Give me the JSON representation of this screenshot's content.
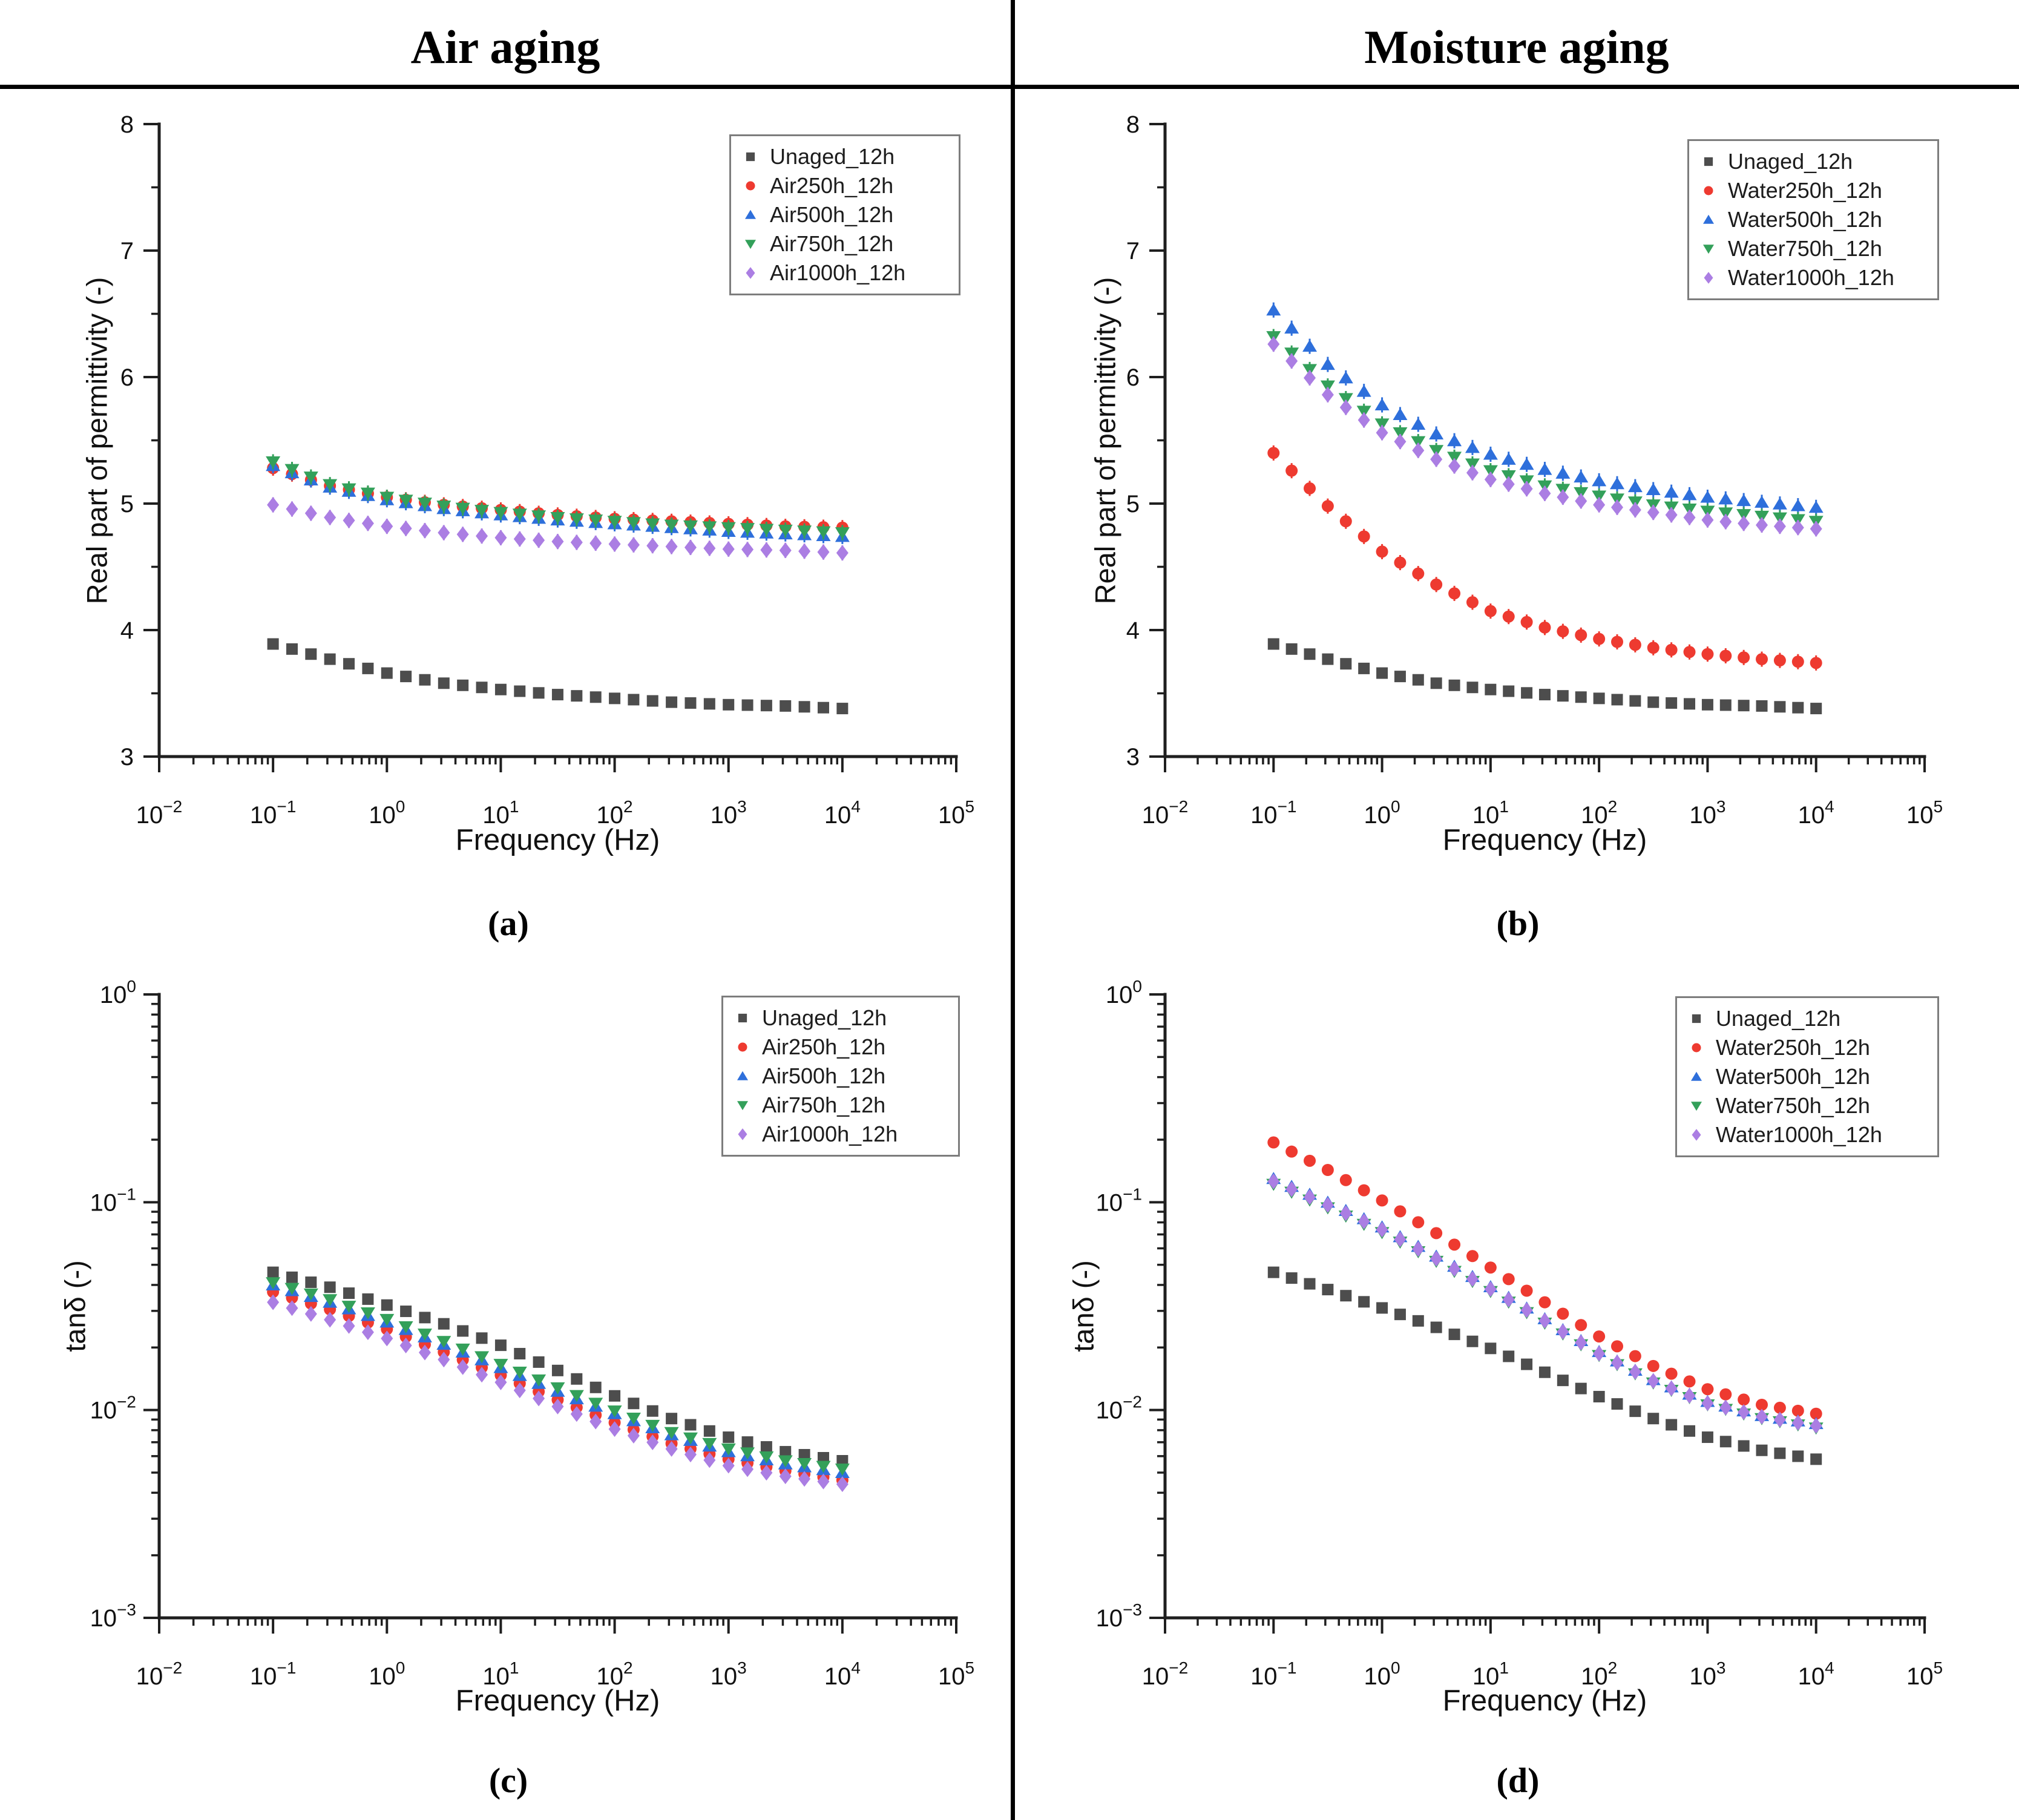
{
  "header": {
    "columns": [
      {
        "title": "Air aging"
      },
      {
        "title": "Moisture aging"
      }
    ]
  },
  "chart_data": [
    {
      "id": "a",
      "type": "scatter",
      "caption": "(a)",
      "xlabel": "Frequency (Hz)",
      "ylabel": "Real part of permittivity  (-)",
      "x_scale": "log",
      "x_range_exp": [
        -2,
        5
      ],
      "y_scale": "linear",
      "y_range": [
        3,
        8
      ],
      "y_major_ticks": [
        3,
        4,
        5,
        6,
        7,
        8
      ],
      "legend_position": "top-right",
      "grid": false,
      "error_bar_halfwidth": 0.06,
      "x_values": [
        0.1,
        0.316,
        1,
        3.16,
        10,
        31.6,
        100,
        316,
        1000,
        3160,
        10000
      ],
      "series": [
        {
          "name": "Unaged_12h",
          "marker": "square",
          "color": "#4d4d4d",
          "error_bars": false,
          "values": [
            3.89,
            3.77,
            3.66,
            3.58,
            3.53,
            3.49,
            3.46,
            3.43,
            3.41,
            3.4,
            3.38
          ]
        },
        {
          "name": "Air250h_12h",
          "marker": "circle",
          "color": "#ee3a30",
          "error_bars": true,
          "values": [
            5.28,
            5.14,
            5.05,
            4.99,
            4.95,
            4.91,
            4.88,
            4.86,
            4.84,
            4.82,
            4.81
          ]
        },
        {
          "name": "Air500h_12h",
          "marker": "triangle-up",
          "color": "#2e6fdb",
          "error_bars": true,
          "values": [
            5.3,
            5.13,
            5.03,
            4.96,
            4.91,
            4.87,
            4.84,
            4.81,
            4.78,
            4.76,
            4.74
          ]
        },
        {
          "name": "Air750h_12h",
          "marker": "triangle-down",
          "color": "#33a05a",
          "error_bars": true,
          "values": [
            5.33,
            5.15,
            5.05,
            4.98,
            4.93,
            4.89,
            4.86,
            4.83,
            4.81,
            4.79,
            4.77
          ]
        },
        {
          "name": "Air1000h_12h",
          "marker": "diamond",
          "color": "#ab7ee3",
          "error_bars": true,
          "values": [
            4.99,
            4.89,
            4.82,
            4.77,
            4.73,
            4.7,
            4.68,
            4.66,
            4.64,
            4.63,
            4.61
          ]
        }
      ]
    },
    {
      "id": "b",
      "type": "scatter",
      "caption": "(b)",
      "xlabel": "Frequency (Hz)",
      "ylabel": "Real part of permittivity  (-)",
      "x_scale": "log",
      "x_range_exp": [
        -2,
        5
      ],
      "y_scale": "linear",
      "y_range": [
        3,
        8
      ],
      "y_major_ticks": [
        3,
        4,
        5,
        6,
        7,
        8
      ],
      "legend_position": "top-right",
      "grid": false,
      "error_bar_halfwidth": 0.06,
      "x_values": [
        0.1,
        0.316,
        1,
        3.16,
        10,
        31.6,
        100,
        316,
        1000,
        3160,
        10000
      ],
      "series": [
        {
          "name": "Unaged_12h",
          "marker": "square",
          "color": "#4d4d4d",
          "error_bars": false,
          "values": [
            3.89,
            3.77,
            3.66,
            3.58,
            3.53,
            3.49,
            3.46,
            3.43,
            3.41,
            3.4,
            3.38
          ]
        },
        {
          "name": "Water250h_12h",
          "marker": "circle",
          "color": "#ee3a30",
          "error_bars": true,
          "values": [
            5.4,
            4.98,
            4.62,
            4.36,
            4.15,
            4.02,
            3.93,
            3.86,
            3.81,
            3.77,
            3.74
          ]
        },
        {
          "name": "Water500h_12h",
          "marker": "triangle-up",
          "color": "#2e6fdb",
          "error_bars": true,
          "values": [
            6.53,
            6.1,
            5.78,
            5.55,
            5.39,
            5.27,
            5.18,
            5.11,
            5.05,
            5.01,
            4.97
          ]
        },
        {
          "name": "Water750h_12h",
          "marker": "triangle-down",
          "color": "#33a05a",
          "error_bars": true,
          "values": [
            6.32,
            5.93,
            5.63,
            5.42,
            5.26,
            5.14,
            5.06,
            4.99,
            4.94,
            4.9,
            4.86
          ]
        },
        {
          "name": "Water1000h_12h",
          "marker": "diamond",
          "color": "#ab7ee3",
          "error_bars": true,
          "values": [
            6.26,
            5.86,
            5.56,
            5.35,
            5.19,
            5.08,
            4.99,
            4.93,
            4.87,
            4.83,
            4.8
          ]
        }
      ]
    },
    {
      "id": "c",
      "type": "scatter",
      "caption": "(c)",
      "xlabel": "Frequency (Hz)",
      "ylabel": "tanδ (-)",
      "x_scale": "log",
      "x_range_exp": [
        -2,
        5
      ],
      "y_scale": "log",
      "y_range_exp": [
        -3,
        0
      ],
      "legend_position": "top-right",
      "grid": false,
      "x_values": [
        0.1,
        0.316,
        1,
        3.16,
        10,
        31.6,
        100,
        316,
        1000,
        3160,
        10000
      ],
      "series": [
        {
          "name": "Unaged_12h",
          "marker": "square",
          "color": "#4d4d4d",
          "error_bars": false,
          "values": [
            0.046,
            0.039,
            0.032,
            0.026,
            0.0205,
            0.0155,
            0.0117,
            0.0091,
            0.0074,
            0.0063,
            0.0057
          ]
        },
        {
          "name": "Air250h_12h",
          "marker": "circle",
          "color": "#ee3a30",
          "error_bars": false,
          "values": [
            0.037,
            0.0305,
            0.0245,
            0.019,
            0.0147,
            0.0112,
            0.0087,
            0.0069,
            0.0058,
            0.0051,
            0.0046
          ]
        },
        {
          "name": "Air500h_12h",
          "marker": "triangle-up",
          "color": "#2e6fdb",
          "error_bars": false,
          "values": [
            0.04,
            0.033,
            0.0265,
            0.0207,
            0.016,
            0.0123,
            0.0096,
            0.0076,
            0.0063,
            0.0055,
            0.005
          ]
        },
        {
          "name": "Air750h_12h",
          "marker": "triangle-down",
          "color": "#33a05a",
          "error_bars": false,
          "values": [
            0.041,
            0.034,
            0.0273,
            0.0214,
            0.0166,
            0.0128,
            0.0099,
            0.0078,
            0.0065,
            0.0057,
            0.0052
          ]
        },
        {
          "name": "Air1000h_12h",
          "marker": "diamond",
          "color": "#ab7ee3",
          "error_bars": false,
          "values": [
            0.033,
            0.0272,
            0.0221,
            0.0175,
            0.0136,
            0.0104,
            0.0081,
            0.0065,
            0.0054,
            0.0048,
            0.0044
          ]
        }
      ]
    },
    {
      "id": "d",
      "type": "scatter",
      "caption": "(d)",
      "xlabel": "Frequency (Hz)",
      "ylabel": "tanδ (-)",
      "x_scale": "log",
      "x_range_exp": [
        -2,
        5
      ],
      "y_scale": "log",
      "y_range_exp": [
        -3,
        0
      ],
      "legend_position": "top-right",
      "grid": false,
      "x_values": [
        0.1,
        0.316,
        1,
        3.16,
        10,
        31.6,
        100,
        316,
        1000,
        3160,
        10000
      ],
      "series": [
        {
          "name": "Unaged_12h",
          "marker": "square",
          "color": "#4d4d4d",
          "error_bars": false,
          "values": [
            0.046,
            0.038,
            0.031,
            0.025,
            0.0198,
            0.0152,
            0.0116,
            0.0091,
            0.0074,
            0.0064,
            0.0058
          ]
        },
        {
          "name": "Water250h_12h",
          "marker": "circle",
          "color": "#ee3a30",
          "error_bars": false,
          "values": [
            0.194,
            0.143,
            0.102,
            0.071,
            0.0485,
            0.033,
            0.0226,
            0.0163,
            0.0126,
            0.0106,
            0.0096
          ]
        },
        {
          "name": "Water500h_12h",
          "marker": "triangle-up",
          "color": "#2e6fdb",
          "error_bars": false,
          "values": [
            0.13,
            0.1,
            0.076,
            0.055,
            0.0392,
            0.0275,
            0.0191,
            0.014,
            0.011,
            0.0094,
            0.0086
          ]
        },
        {
          "name": "Water750h_12h",
          "marker": "triangle-down",
          "color": "#33a05a",
          "error_bars": false,
          "values": [
            0.122,
            0.094,
            0.0715,
            0.052,
            0.0372,
            0.0262,
            0.0183,
            0.0135,
            0.0106,
            0.0091,
            0.0082
          ]
        },
        {
          "name": "Water1000h_12h",
          "marker": "diamond",
          "color": "#ab7ee3",
          "error_bars": false,
          "values": [
            0.126,
            0.097,
            0.0738,
            0.0535,
            0.0382,
            0.0269,
            0.0187,
            0.0138,
            0.0108,
            0.0093,
            0.0084
          ]
        }
      ]
    }
  ]
}
